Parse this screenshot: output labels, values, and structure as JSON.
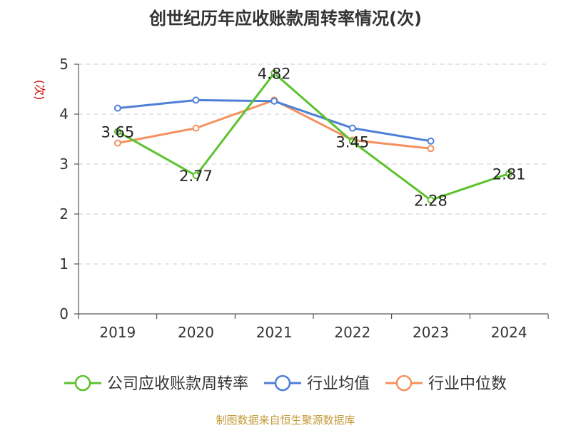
{
  "chart_data": {
    "type": "line",
    "title": "创世纪历年应收账款周转率情况(次)",
    "ylabel": "(次)",
    "categories": [
      "2019",
      "2020",
      "2021",
      "2022",
      "2023",
      "2024"
    ],
    "ylim": [
      0,
      5
    ],
    "yticks": [
      0,
      1,
      2,
      3,
      4,
      5
    ],
    "grid": true,
    "legend_position": "bottom",
    "series": [
      {
        "name": "公司应收账款周转率",
        "color": "#5cc22d",
        "values": [
          3.65,
          2.77,
          4.82,
          3.45,
          2.28,
          2.81
        ],
        "labels": [
          "3.65",
          "2.77",
          "4.82",
          "3.45",
          "2.28",
          "2.81"
        ]
      },
      {
        "name": "行业均值",
        "color": "#4e7fd6",
        "values": [
          4.12,
          4.28,
          4.26,
          3.72,
          3.46,
          null
        ]
      },
      {
        "name": "行业中位数",
        "color": "#f5915e",
        "values": [
          3.42,
          3.72,
          4.28,
          3.48,
          3.31,
          null
        ]
      }
    ],
    "source": "制图数据来自恒生聚源数据库"
  }
}
